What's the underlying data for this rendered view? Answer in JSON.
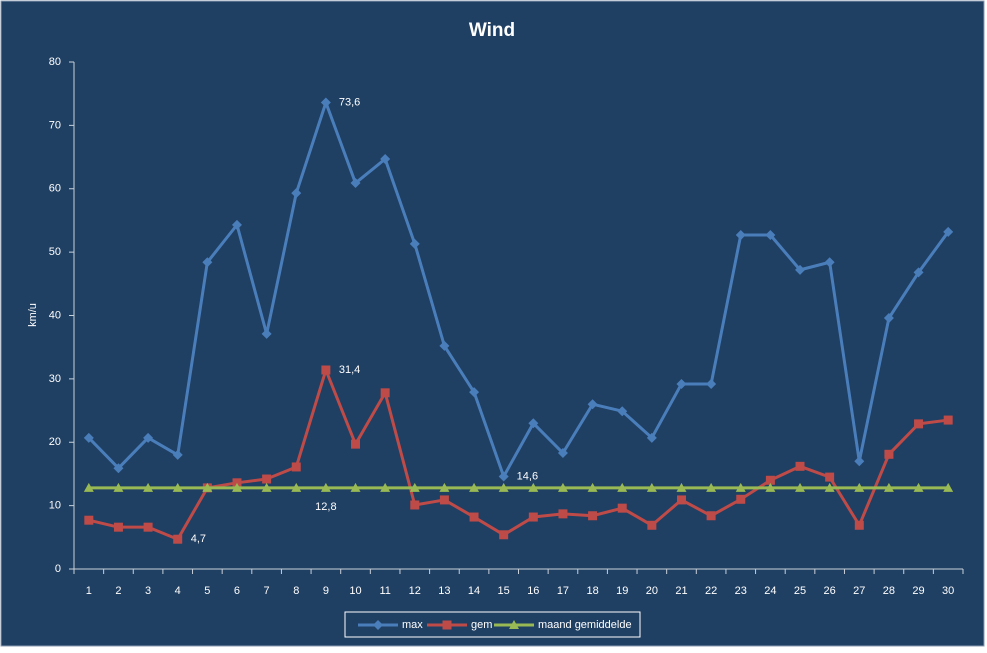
{
  "chart_data": {
    "type": "line",
    "title": "Wind",
    "y_label": "km/u",
    "categories": [
      "1",
      "2",
      "3",
      "4",
      "5",
      "6",
      "7",
      "8",
      "9",
      "10",
      "11",
      "12",
      "13",
      "14",
      "15",
      "16",
      "17",
      "18",
      "19",
      "20",
      "21",
      "22",
      "23",
      "24",
      "25",
      "26",
      "27",
      "28",
      "29",
      "30"
    ],
    "series": [
      {
        "name": "max",
        "color": "#4a7ebb",
        "marker": "diamond",
        "values": [
          20.7,
          15.9,
          20.7,
          18.0,
          48.4,
          54.3,
          37.1,
          59.3,
          73.6,
          60.9,
          64.7,
          51.3,
          35.2,
          27.9,
          14.6,
          23.0,
          18.3,
          26.0,
          24.9,
          20.7,
          29.2,
          29.2,
          52.7,
          52.7,
          47.2,
          48.4,
          17.0,
          39.6,
          46.8,
          53.2
        ],
        "value_labels": [
          null,
          null,
          null,
          null,
          null,
          null,
          null,
          null,
          "73,6",
          null,
          null,
          null,
          null,
          null,
          "14,6",
          null,
          null,
          null,
          null,
          null,
          null,
          null,
          null,
          null,
          null,
          null,
          null,
          null,
          null,
          null
        ]
      },
      {
        "name": "gem",
        "color": "#be4b48",
        "marker": "square",
        "values": [
          7.7,
          6.6,
          6.6,
          4.7,
          12.8,
          13.6,
          14.2,
          16.1,
          31.4,
          19.7,
          27.8,
          10.1,
          10.9,
          8.2,
          5.4,
          8.2,
          8.7,
          8.4,
          9.6,
          6.9,
          10.9,
          8.4,
          11.0,
          14.0,
          16.2,
          14.5,
          6.9,
          18.1,
          22.9,
          23.5
        ],
        "value_labels": [
          null,
          null,
          null,
          "4,7",
          null,
          null,
          null,
          null,
          "31,4",
          null,
          null,
          null,
          null,
          null,
          null,
          null,
          null,
          null,
          null,
          null,
          null,
          null,
          null,
          null,
          null,
          null,
          null,
          null,
          null,
          null
        ]
      },
      {
        "name": "maand gemiddelde",
        "color": "#98b954",
        "marker": "triangle",
        "values": [
          12.8,
          12.8,
          12.8,
          12.8,
          12.8,
          12.8,
          12.8,
          12.8,
          12.8,
          12.8,
          12.8,
          12.8,
          12.8,
          12.8,
          12.8,
          12.8,
          12.8,
          12.8,
          12.8,
          12.8,
          12.8,
          12.8,
          12.8,
          12.8,
          12.8,
          12.8,
          12.8,
          12.8,
          12.8,
          12.8
        ],
        "value_labels": [
          null,
          null,
          null,
          null,
          null,
          null,
          null,
          null,
          "12,8",
          null,
          null,
          null,
          null,
          null,
          null,
          null,
          null,
          null,
          null,
          null,
          null,
          null,
          null,
          null,
          null,
          null,
          null,
          null,
          null,
          null
        ]
      }
    ],
    "ylim": [
      0,
      80
    ],
    "yticks": [
      0,
      10,
      20,
      30,
      40,
      50,
      60,
      70,
      80
    ],
    "grid": false,
    "legend": "bottom"
  }
}
